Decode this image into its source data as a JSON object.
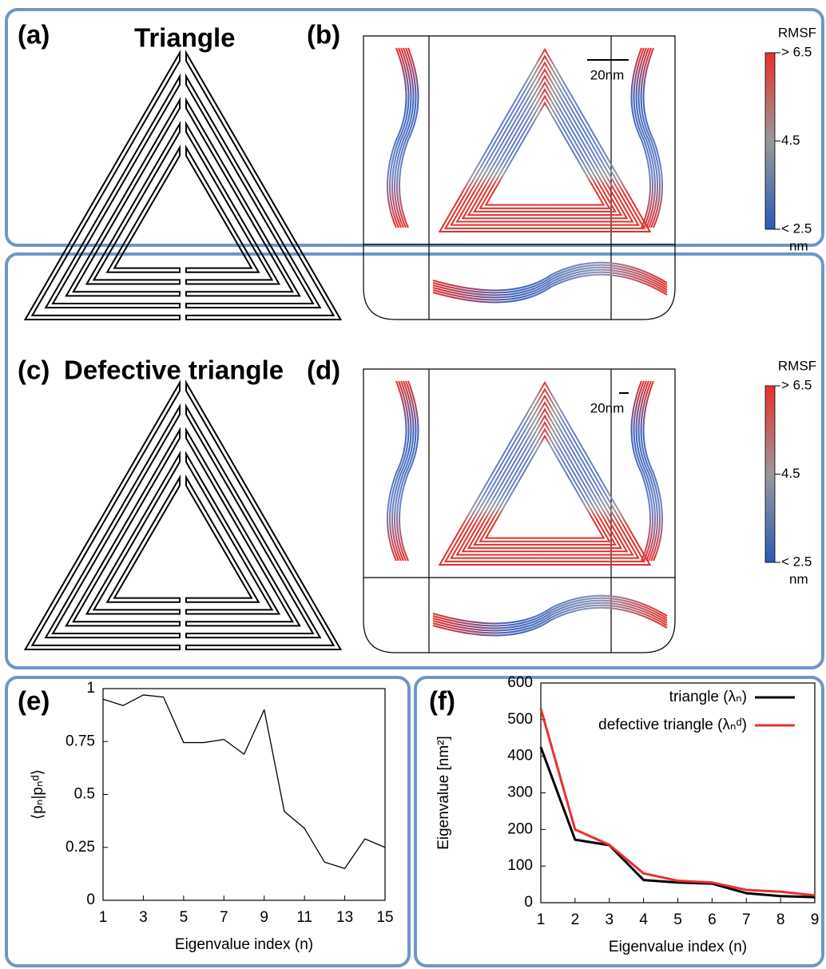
{
  "panels": {
    "a": {
      "label": "(a)",
      "title": "Triangle"
    },
    "b": {
      "label": "(b)",
      "scale_bar": "20nm",
      "colorbar": {
        "title": "RMSF",
        "max": "> 6.5",
        "mid": "4.5",
        "min": "< 2.5",
        "unit": "nm"
      }
    },
    "c": {
      "label": "(c)",
      "title": "Defective triangle"
    },
    "d": {
      "label": "(d)",
      "scale_bar": "20nm",
      "colorbar": {
        "title": "RMSF",
        "max": "> 6.5",
        "mid": "4.5",
        "min": "< 2.5",
        "unit": "nm"
      }
    }
  },
  "chart_data": [
    {
      "type": "line",
      "panel_label": "(e)",
      "xlabel": "Eigenvalue index (n)",
      "ylabel": "⟨pₙ|pₙᵈ⟩",
      "x": [
        1,
        2,
        3,
        4,
        5,
        6,
        7,
        8,
        9,
        10,
        11,
        12,
        13,
        14,
        15
      ],
      "values": [
        0.95,
        0.92,
        0.97,
        0.96,
        0.745,
        0.745,
        0.76,
        0.69,
        0.9,
        0.42,
        0.34,
        0.18,
        0.15,
        0.29,
        0.25
      ],
      "color": "#000000",
      "xlim": [
        1,
        15
      ],
      "ylim": [
        0,
        1
      ],
      "xticks": [
        1,
        3,
        5,
        7,
        9,
        11,
        13,
        15
      ],
      "yticks": [
        0,
        0.25,
        0.5,
        0.75,
        1
      ]
    },
    {
      "type": "line",
      "panel_label": "(f)",
      "xlabel": "Eigenvalue index (n)",
      "ylabel": "Eigenvalue [nm²]",
      "x": [
        1,
        2,
        3,
        4,
        5,
        6,
        7,
        8,
        9
      ],
      "series": [
        {
          "name": "triangle (λₙ)",
          "color": "#000000",
          "values": [
            425,
            172,
            157,
            62,
            55,
            52,
            26,
            18,
            15
          ]
        },
        {
          "name": "defective triangle (λₙᵈ)",
          "color": "#e8312f",
          "values": [
            530,
            200,
            158,
            80,
            60,
            55,
            35,
            30,
            20
          ]
        }
      ],
      "xlim": [
        1,
        9
      ],
      "ylim": [
        0,
        600
      ],
      "xticks": [
        1,
        2,
        3,
        4,
        5,
        6,
        7,
        8,
        9
      ],
      "yticks": [
        0,
        100,
        200,
        300,
        400,
        500,
        600
      ],
      "legend": "upper right"
    }
  ]
}
